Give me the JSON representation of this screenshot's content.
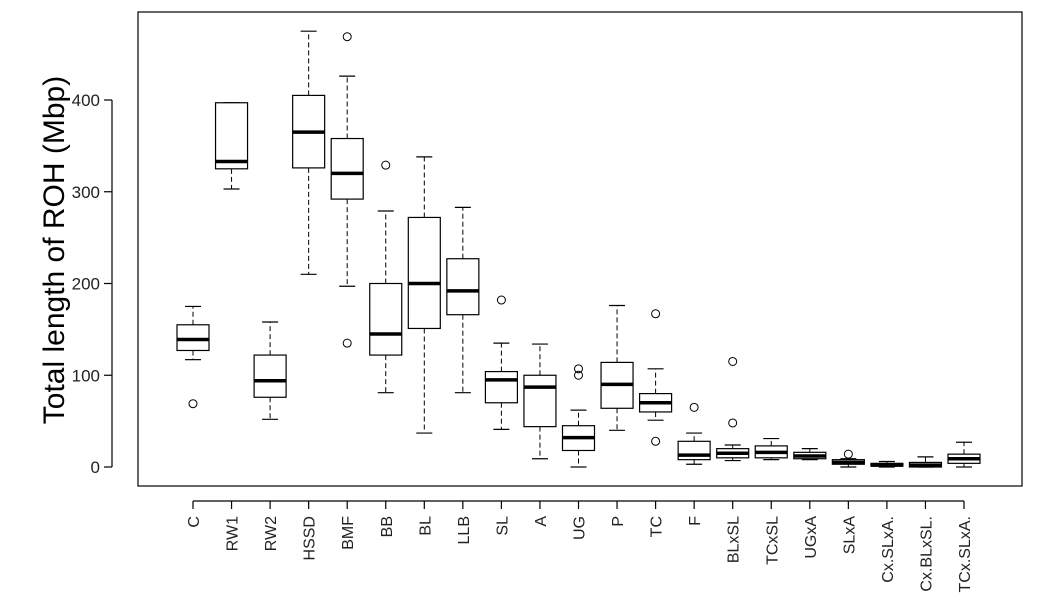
{
  "chart_data": {
    "type": "boxplot",
    "title": "",
    "xlabel": "",
    "ylabel": "Total length of ROH (Mbp)",
    "ylim": [
      -20,
      495
    ],
    "y_ticks": [
      0,
      100,
      200,
      300,
      400
    ],
    "grid": false,
    "legend": "none",
    "categories": [
      "C",
      "RW1",
      "RW2",
      "HSSD",
      "BMF",
      "BB",
      "BL",
      "LLB",
      "SL",
      "A",
      "UG",
      "P",
      "TC",
      "F",
      "BLxSL",
      "TCxSL",
      "UGxA",
      "SLxA",
      "Cx.SLxA.",
      "Cx.BLxSL.",
      "TCx.SLxA."
    ],
    "boxes": [
      {
        "name": "C",
        "whisker_low": 117,
        "q1": 127,
        "median": 139,
        "q3": 155,
        "whisker_high": 175,
        "outliers": [
          69
        ]
      },
      {
        "name": "RW1",
        "whisker_low": 303,
        "q1": 325,
        "median": 333,
        "q3": 397,
        "whisker_high": 397,
        "outliers": []
      },
      {
        "name": "RW2",
        "whisker_low": 52,
        "q1": 76,
        "median": 94,
        "q3": 122,
        "whisker_high": 158,
        "outliers": []
      },
      {
        "name": "HSSD",
        "whisker_low": 210,
        "q1": 326,
        "median": 365,
        "q3": 405,
        "whisker_high": 475,
        "outliers": []
      },
      {
        "name": "BMF",
        "whisker_low": 197,
        "q1": 292,
        "median": 320,
        "q3": 358,
        "whisker_high": 426,
        "outliers": [
          469,
          135
        ]
      },
      {
        "name": "BB",
        "whisker_low": 81,
        "q1": 122,
        "median": 145,
        "q3": 200,
        "whisker_high": 279,
        "outliers": [
          329
        ]
      },
      {
        "name": "BL",
        "whisker_low": 37,
        "q1": 151,
        "median": 200,
        "q3": 272,
        "whisker_high": 338,
        "outliers": []
      },
      {
        "name": "LLB",
        "whisker_low": 81,
        "q1": 166,
        "median": 192,
        "q3": 227,
        "whisker_high": 283,
        "outliers": []
      },
      {
        "name": "SL",
        "whisker_low": 41,
        "q1": 70,
        "median": 95,
        "q3": 104,
        "whisker_high": 135,
        "outliers": [
          182
        ]
      },
      {
        "name": "A",
        "whisker_low": 9,
        "q1": 44,
        "median": 87,
        "q3": 100,
        "whisker_high": 134,
        "outliers": []
      },
      {
        "name": "UG",
        "whisker_low": 0,
        "q1": 18,
        "median": 32,
        "q3": 45,
        "whisker_high": 62,
        "outliers": [
          100,
          107
        ]
      },
      {
        "name": "P",
        "whisker_low": 40,
        "q1": 64,
        "median": 90,
        "q3": 114,
        "whisker_high": 176,
        "outliers": []
      },
      {
        "name": "TC",
        "whisker_low": 51,
        "q1": 60,
        "median": 70,
        "q3": 80,
        "whisker_high": 107,
        "outliers": [
          167,
          28
        ]
      },
      {
        "name": "F",
        "whisker_low": 3,
        "q1": 8,
        "median": 13,
        "q3": 28,
        "whisker_high": 37,
        "outliers": [
          65
        ]
      },
      {
        "name": "BLxSL",
        "whisker_low": 7,
        "q1": 10,
        "median": 15,
        "q3": 20,
        "whisker_high": 24,
        "outliers": [
          115,
          48
        ]
      },
      {
        "name": "TCxSL",
        "whisker_low": 8,
        "q1": 10,
        "median": 16,
        "q3": 23,
        "whisker_high": 31,
        "outliers": []
      },
      {
        "name": "UGxA",
        "whisker_low": 8,
        "q1": 9,
        "median": 12,
        "q3": 16,
        "whisker_high": 20,
        "outliers": []
      },
      {
        "name": "SLxA",
        "whisker_low": 0,
        "q1": 3,
        "median": 5,
        "q3": 8,
        "whisker_high": 9,
        "outliers": [
          14
        ]
      },
      {
        "name": "Cx.SLxA.",
        "whisker_low": 0,
        "q1": 1,
        "median": 2,
        "q3": 4,
        "whisker_high": 6,
        "outliers": []
      },
      {
        "name": "Cx.BLxSL.",
        "whisker_low": 0,
        "q1": 0,
        "median": 2,
        "q3": 5,
        "whisker_high": 11,
        "outliers": []
      },
      {
        "name": "TCx.SLxA.",
        "whisker_low": 0,
        "q1": 4,
        "median": 9,
        "q3": 14,
        "whisker_high": 27,
        "outliers": []
      }
    ]
  }
}
